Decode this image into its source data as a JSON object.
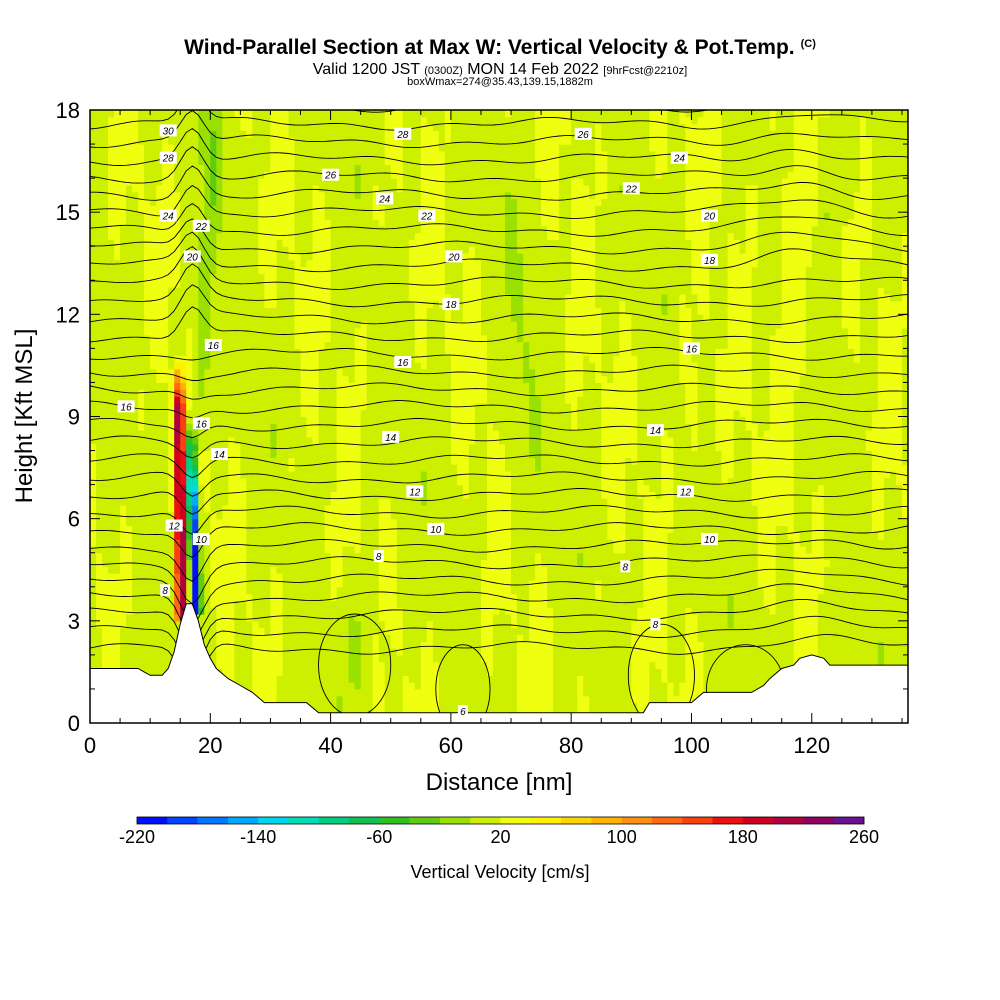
{
  "title": "Wind-Parallel Section at Max W: Vertical Velocity & Pot.Temp.",
  "title_mark": "(C)",
  "valid_main": "Valid 1200 JST",
  "valid_z": "(0300Z)",
  "valid_date": "MON 14 Feb 2022",
  "valid_fcst": "[9hrFcst@2210z]",
  "box_info": "boxWmax=274@35.43,139.15,1882m",
  "chart_data": {
    "type": "heatmap",
    "title": "Wind-Parallel Section at Max W: Vertical Velocity & Pot.Temp.",
    "xlabel": "Distance [nm]",
    "ylabel": "Height [Kft MSL]",
    "xlim": [
      0,
      136
    ],
    "ylim": [
      0,
      18
    ],
    "x_ticks": [
      0,
      20,
      40,
      60,
      80,
      100,
      120
    ],
    "y_ticks": [
      0,
      3,
      6,
      9,
      12,
      15,
      18
    ],
    "colorbar": {
      "label": "Vertical Velocity [cm/s]",
      "min": -220,
      "max": 260,
      "step": 20,
      "tick_values": [
        -220,
        -140,
        -60,
        20,
        100,
        180,
        260
      ],
      "colors": [
        "#0010ff",
        "#0044ff",
        "#0077ff",
        "#00a8ff",
        "#00d8f0",
        "#00e0b8",
        "#00d080",
        "#10c050",
        "#30c020",
        "#60cc10",
        "#9ae000",
        "#ccf000",
        "#f0ff10",
        "#fff200",
        "#ffd400",
        "#ffb400",
        "#ff9010",
        "#ff6810",
        "#f84010",
        "#ee1010",
        "#d00020",
        "#b00040",
        "#900060",
        "#6a1090"
      ]
    },
    "terrain": [
      [
        0,
        1.6
      ],
      [
        8,
        1.6
      ],
      [
        9,
        1.5
      ],
      [
        10,
        1.4
      ],
      [
        12,
        1.4
      ],
      [
        13,
        1.6
      ],
      [
        14,
        2.1
      ],
      [
        15,
        2.9
      ],
      [
        16,
        3.5
      ],
      [
        17,
        3.5
      ],
      [
        18,
        3.0
      ],
      [
        19,
        2.3
      ],
      [
        20,
        1.9
      ],
      [
        21,
        1.6
      ],
      [
        23,
        1.3
      ],
      [
        25,
        1.1
      ],
      [
        27,
        0.9
      ],
      [
        29,
        0.6
      ],
      [
        36,
        0.6
      ],
      [
        38,
        0.3
      ],
      [
        44,
        0.3
      ],
      [
        52,
        0.3
      ],
      [
        60,
        0.3
      ],
      [
        70,
        0.3
      ],
      [
        80,
        0.3
      ],
      [
        92,
        0.3
      ],
      [
        93,
        0.6
      ],
      [
        100,
        0.6
      ],
      [
        102,
        0.9
      ],
      [
        110,
        0.9
      ],
      [
        112,
        1.1
      ],
      [
        113,
        1.3
      ],
      [
        115,
        1.6
      ],
      [
        117,
        1.7
      ],
      [
        118,
        1.9
      ],
      [
        120,
        2.0
      ],
      [
        122,
        1.9
      ],
      [
        123,
        1.7
      ],
      [
        128,
        1.7
      ],
      [
        136,
        1.7
      ]
    ],
    "contour_labels": [
      {
        "text": "30",
        "x": 13,
        "y": 17.4
      },
      {
        "text": "28",
        "x": 13,
        "y": 16.6
      },
      {
        "text": "28",
        "x": 52,
        "y": 17.3
      },
      {
        "text": "26",
        "x": 82,
        "y": 17.3
      },
      {
        "text": "26",
        "x": 40,
        "y": 16.1
      },
      {
        "text": "24",
        "x": 98,
        "y": 16.6
      },
      {
        "text": "24",
        "x": 49,
        "y": 15.4
      },
      {
        "text": "22",
        "x": 90,
        "y": 15.7
      },
      {
        "text": "24",
        "x": 13,
        "y": 14.9
      },
      {
        "text": "22",
        "x": 18.5,
        "y": 14.6
      },
      {
        "text": "22",
        "x": 56,
        "y": 14.9
      },
      {
        "text": "20",
        "x": 103,
        "y": 14.9
      },
      {
        "text": "20",
        "x": 17,
        "y": 13.7
      },
      {
        "text": "20",
        "x": 60.5,
        "y": 13.7
      },
      {
        "text": "18",
        "x": 103,
        "y": 13.6
      },
      {
        "text": "18",
        "x": 60,
        "y": 12.3
      },
      {
        "text": "16",
        "x": 20.5,
        "y": 11.1
      },
      {
        "text": "16",
        "x": 100,
        "y": 11.0
      },
      {
        "text": "16",
        "x": 52,
        "y": 10.6
      },
      {
        "text": "16",
        "x": 6,
        "y": 9.3
      },
      {
        "text": "16",
        "x": 18.5,
        "y": 8.8
      },
      {
        "text": "14",
        "x": 94,
        "y": 8.6
      },
      {
        "text": "14",
        "x": 50,
        "y": 8.4
      },
      {
        "text": "14",
        "x": 21.5,
        "y": 7.9
      },
      {
        "text": "12",
        "x": 54,
        "y": 6.8
      },
      {
        "text": "12",
        "x": 99,
        "y": 6.8
      },
      {
        "text": "12",
        "x": 14,
        "y": 5.8
      },
      {
        "text": "10",
        "x": 18.5,
        "y": 5.4
      },
      {
        "text": "10",
        "x": 57.5,
        "y": 5.7
      },
      {
        "text": "10",
        "x": 103,
        "y": 5.4
      },
      {
        "text": "8",
        "x": 48,
        "y": 4.9
      },
      {
        "text": "8",
        "x": 89,
        "y": 4.6
      },
      {
        "text": "8",
        "x": 12.5,
        "y": 3.9
      },
      {
        "text": "8",
        "x": 94,
        "y": 2.9
      },
      {
        "text": "6",
        "x": 62,
        "y": 0.35
      }
    ]
  }
}
